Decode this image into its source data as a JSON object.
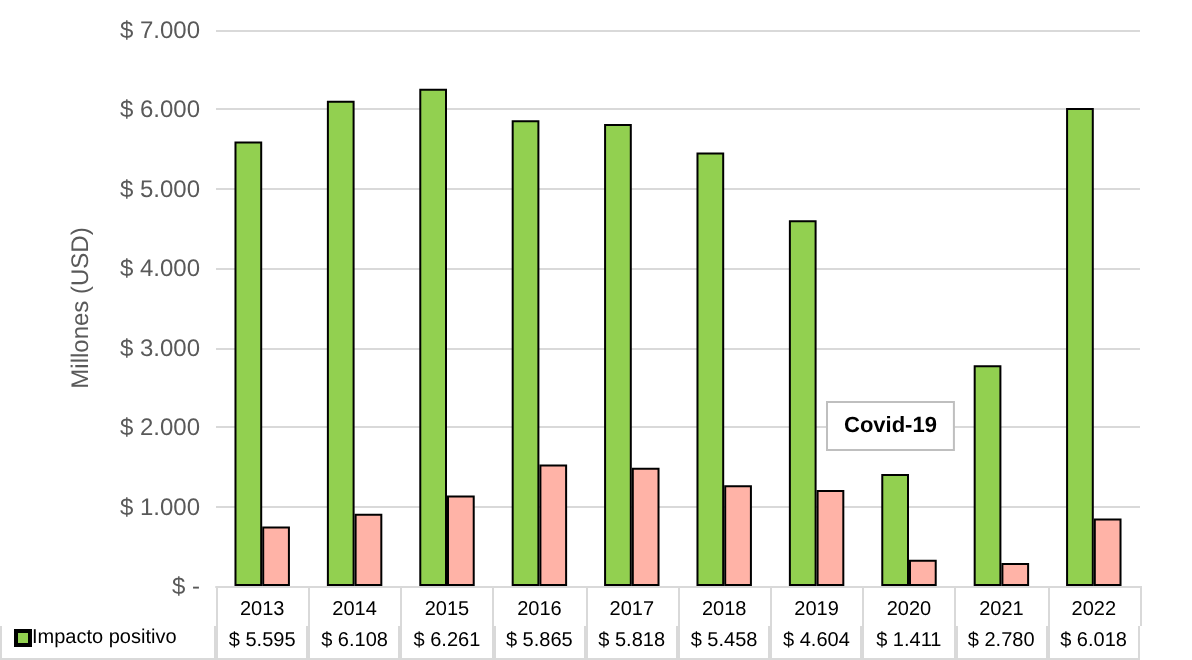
{
  "chart_data": {
    "type": "bar",
    "ylabel": "Millones (USD)",
    "categories": [
      "2013",
      "2014",
      "2015",
      "2016",
      "2017",
      "2018",
      "2019",
      "2020",
      "2021",
      "2022"
    ],
    "series": [
      {
        "name": "Impacto positivo",
        "color": "#92d050",
        "values": [
          5595,
          6108,
          6261,
          5865,
          5818,
          5458,
          4604,
          1411,
          2780,
          6018
        ],
        "value_labels": [
          "$ 5.595",
          "$ 6.108",
          "$ 6.261",
          "$ 5.865",
          "$ 5.818",
          "$ 5.458",
          "$ 4.604",
          "$ 1.411",
          "$ 2.780",
          "$ 6.018"
        ]
      },
      {
        "color": "#ffb3a7",
        "values": [
          750,
          910,
          1140,
          1530,
          1490,
          1270,
          1210,
          330,
          290,
          850
        ]
      }
    ],
    "ylim": [
      0,
      7000
    ],
    "yticks": [
      {
        "value": 0,
        "label": "$ -"
      },
      {
        "value": 1000,
        "label": "$ 1.000"
      },
      {
        "value": 2000,
        "label": "$ 2.000"
      },
      {
        "value": 3000,
        "label": "$ 3.000"
      },
      {
        "value": 4000,
        "label": "$ 4.000"
      },
      {
        "value": 5000,
        "label": "$ 5.000"
      },
      {
        "value": 6000,
        "label": "$ 6.000"
      },
      {
        "value": 7000,
        "label": "$ 7.000"
      }
    ],
    "grid": "y",
    "legend": "bottom left",
    "annotations": [
      "Covid-19"
    ]
  }
}
